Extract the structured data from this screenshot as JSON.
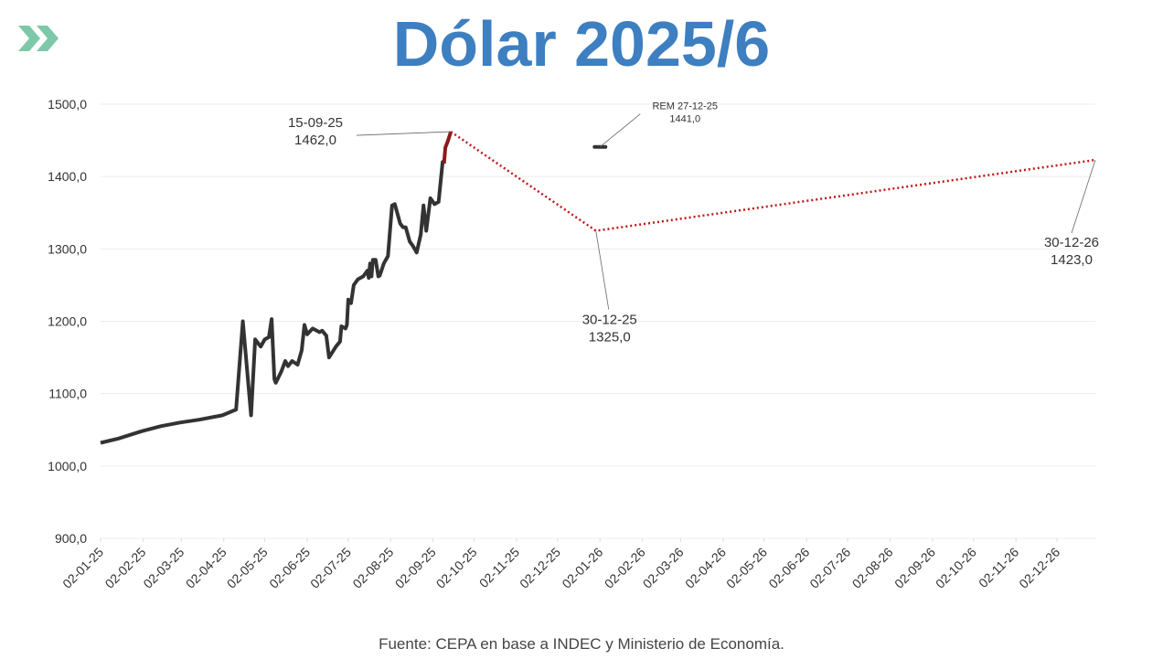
{
  "chart_data": {
    "type": "line",
    "title": "Dólar 2025/6",
    "source": "Fuente: CEPA en base a INDEC y Ministerio de Economía.",
    "ylim": [
      900,
      1500
    ],
    "yticks": [
      {
        "value": 900,
        "label": "900,0"
      },
      {
        "value": 1000,
        "label": "1000,0"
      },
      {
        "value": 1100,
        "label": "1100,0"
      },
      {
        "value": 1200,
        "label": "1200,0"
      },
      {
        "value": 1300,
        "label": "1300,0"
      },
      {
        "value": 1400,
        "label": "1400,0"
      },
      {
        "value": 1500,
        "label": "1500,0"
      }
    ],
    "xlim": [
      "02-01-25",
      "30-12-26"
    ],
    "xticks": [
      "02-01-25",
      "02-02-25",
      "02-03-25",
      "02-04-25",
      "02-05-25",
      "02-06-25",
      "02-07-25",
      "02-08-25",
      "02-09-25",
      "02-10-25",
      "02-11-25",
      "02-12-25",
      "02-01-26",
      "02-02-26",
      "02-03-26",
      "02-04-26",
      "02-05-26",
      "02-06-26",
      "02-07-26",
      "02-08-26",
      "02-09-26",
      "02-10-26",
      "02-11-26",
      "02-12-26"
    ],
    "grid": true,
    "series": [
      {
        "color": "#333333",
        "style": "solid",
        "x": [
          "02-01-25",
          "15-01-25",
          "01-02-25",
          "15-02-25",
          "01-03-25",
          "15-03-25",
          "01-04-25",
          "11-04-25",
          "16-04-25",
          "22-04-25",
          "25-04-25",
          "29-04-25",
          "02-05-25",
          "05-05-25",
          "07-05-25",
          "09-05-25",
          "10-05-25",
          "14-05-25",
          "17-05-25",
          "19-05-25",
          "22-05-25",
          "26-05-25",
          "29-05-25",
          "31-05-25",
          "02-06-25",
          "06-06-25",
          "11-06-25",
          "13-06-25",
          "16-06-25",
          "18-06-25",
          "23-06-25",
          "26-06-25",
          "27-06-25",
          "30-06-25",
          "01-07-25",
          "02-07-25",
          "04-07-25",
          "06-07-25",
          "09-07-25",
          "13-07-25",
          "16-07-25",
          "17-07-25",
          "18-07-25",
          "19-07-25",
          "20-07-25",
          "22-07-25",
          "24-07-25",
          "25-07-25",
          "28-07-25",
          "31-07-25",
          "03-08-25",
          "05-08-25",
          "09-08-25",
          "11-08-25",
          "13-08-25",
          "16-08-25",
          "18-08-25",
          "21-08-25",
          "24-08-25",
          "26-08-25",
          "28-08-25",
          "31-08-25",
          "03-09-25",
          "06-09-25",
          "09-09-25",
          "10-09-25"
        ],
        "values": [
          1032,
          1038,
          1048,
          1055,
          1060,
          1064,
          1070,
          1078,
          1200,
          1070,
          1175,
          1165,
          1175,
          1178,
          1203,
          1120,
          1115,
          1130,
          1145,
          1138,
          1145,
          1140,
          1160,
          1195,
          1182,
          1190,
          1185,
          1187,
          1180,
          1150,
          1165,
          1172,
          1193,
          1190,
          1195,
          1230,
          1225,
          1250,
          1258,
          1262,
          1270,
          1260,
          1280,
          1262,
          1285,
          1285,
          1262,
          1263,
          1280,
          1290,
          1360,
          1362,
          1335,
          1330,
          1330,
          1310,
          1305,
          1295,
          1320,
          1360,
          1325,
          1370,
          1362,
          1365,
          1420,
          1418
        ]
      },
      {
        "color": "#8b1a1a",
        "style": "solid",
        "x": [
          "10-09-25",
          "11-09-25",
          "13-09-25",
          "15-09-25"
        ],
        "values": [
          1418,
          1440,
          1450,
          1462
        ]
      },
      {
        "color": "#c0181b",
        "style": "dotted",
        "x": [
          "15-09-25",
          "30-12-25",
          "30-12-26"
        ],
        "values": [
          1462,
          1325,
          1423
        ],
        "value_labels": [
          "1462,0",
          "1325,0",
          "1423,0"
        ]
      },
      {
        "name": "REM",
        "color": "#333333",
        "style": "dash",
        "x": [
          "27-12-25"
        ],
        "values": [
          1441
        ],
        "value_labels": [
          "1441,0"
        ]
      }
    ]
  }
}
